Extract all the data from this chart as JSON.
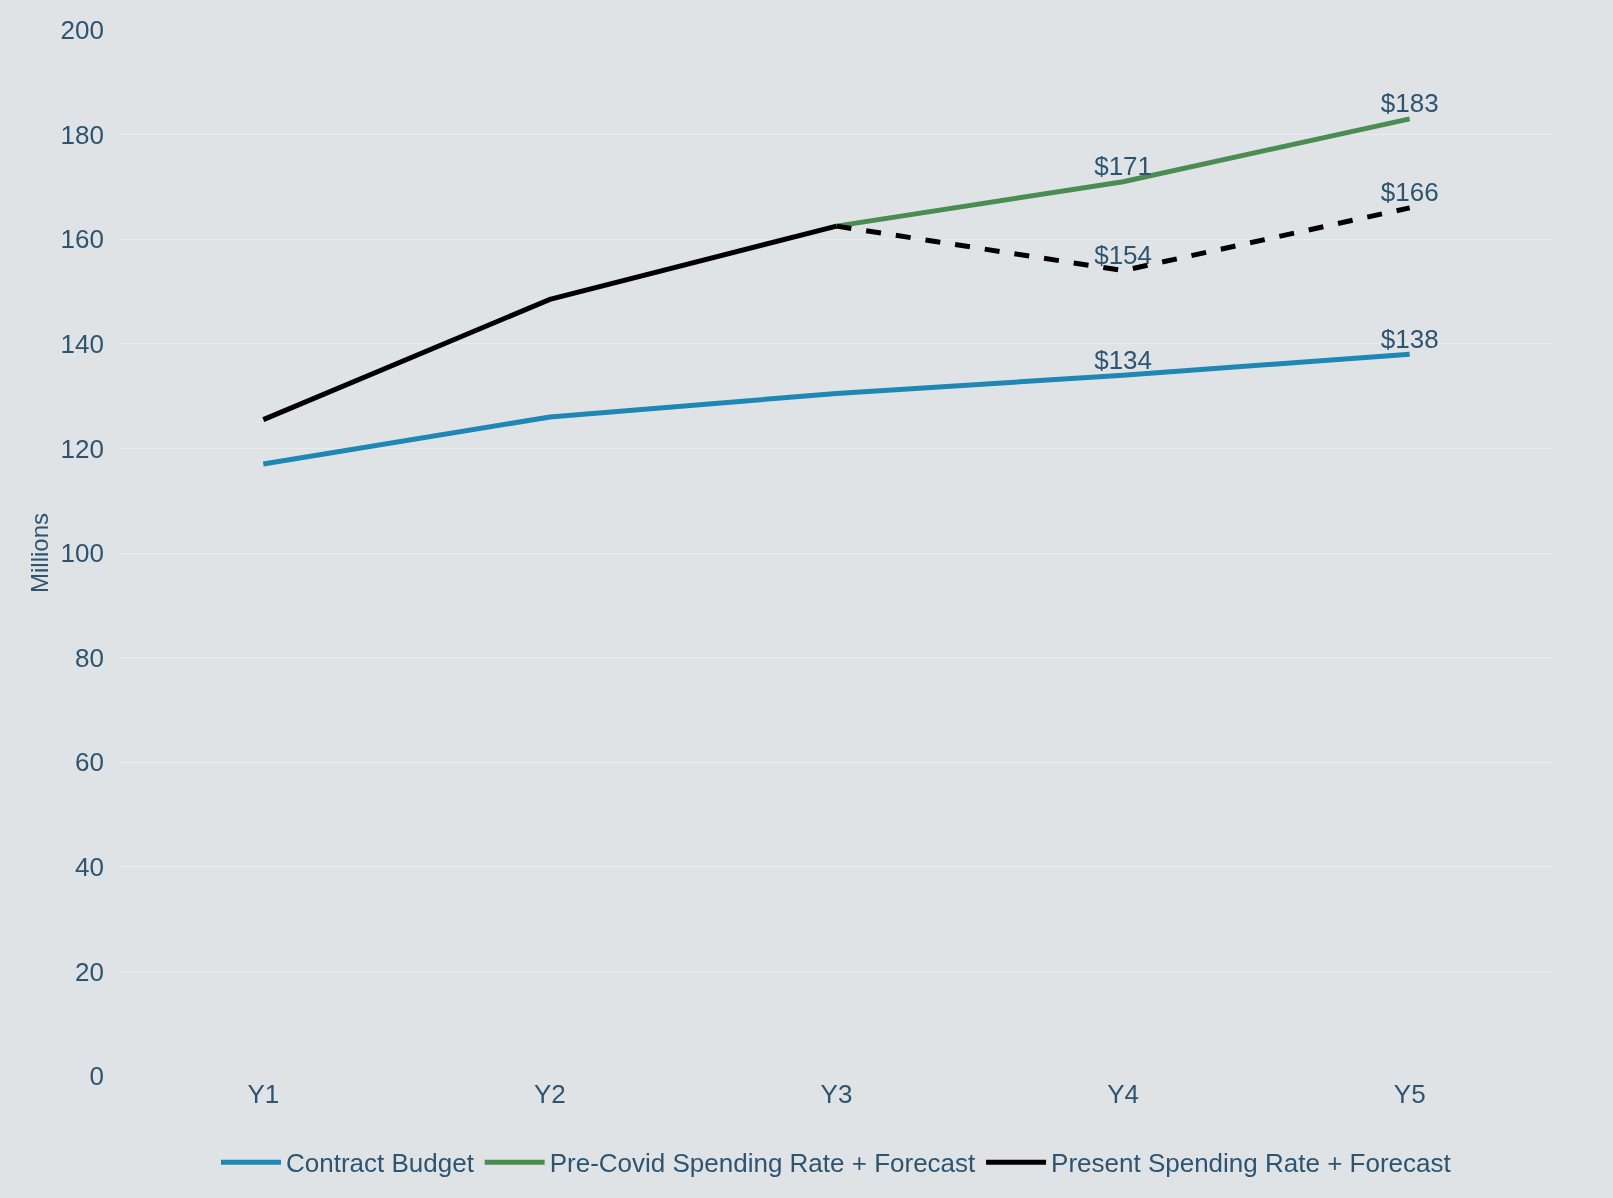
{
  "chart_data": {
    "type": "line",
    "ylabel": "Millions",
    "categories": [
      "Y1",
      "Y2",
      "Y3",
      "Y4",
      "Y5"
    ],
    "series": [
      {
        "name": "Contract Budget",
        "color": "#1f87b4",
        "values": [
          117,
          126,
          130.5,
          134,
          138
        ],
        "value_labels": [
          null,
          null,
          null,
          "$134",
          "$138"
        ]
      },
      {
        "name": "Pre-Covid Spending Rate + Forecast",
        "color": "#4a8c52",
        "values": [
          null,
          null,
          162.5,
          171,
          183
        ],
        "value_labels": [
          null,
          null,
          null,
          "$171",
          "$183"
        ]
      },
      {
        "name": "Present Spending Rate + Forecast",
        "color": "#000000",
        "values": [
          125.5,
          148.5,
          162.5,
          null,
          null
        ]
      },
      {
        "color": "#000000",
        "line_style": "dashed",
        "values": [
          null,
          null,
          162.5,
          154,
          166
        ],
        "value_labels": [
          null,
          null,
          null,
          "$154",
          "$166"
        ]
      }
    ],
    "ylim": [
      0,
      200
    ],
    "yticks": [
      0,
      20,
      40,
      60,
      80,
      100,
      120,
      140,
      160,
      180,
      200
    ],
    "grid": "y",
    "legend": "bottom",
    "marker": "none",
    "line_style": "solid"
  }
}
